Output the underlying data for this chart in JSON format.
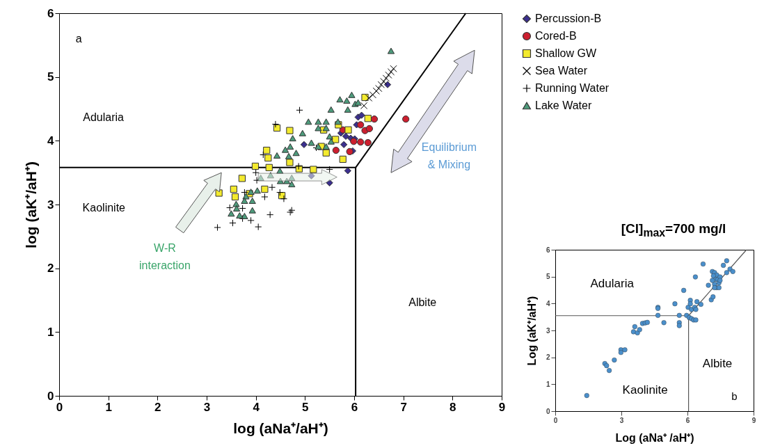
{
  "chart_data": [
    {
      "type": "scatter",
      "xlabel": "log (aNa⁺/aH⁺)",
      "ylabel": "log (aK⁺/aH⁺)",
      "xlim": [
        0,
        9
      ],
      "ylim": [
        0,
        6
      ],
      "xticks": [
        0,
        1,
        2,
        3,
        4,
        5,
        6,
        7,
        8,
        9
      ],
      "yticks": [
        0,
        1,
        2,
        3,
        4,
        5,
        6
      ],
      "grid": false,
      "legend": "top right",
      "annotations": [
        "a",
        "Adularia",
        "Kaolinite",
        "Albite",
        "W-R\ninteraction",
        "Equilibrium\n& Mixing"
      ],
      "series": [
        {
          "name": "Percussion-B",
          "color": "#3b2f8f",
          "marker": "diamond",
          "x": [
            6.68,
            6.08,
            6.15,
            6.05,
            5.73,
            5.83,
            5.93,
            6.01,
            5.79,
            5.97,
            4.98,
            5.87,
            5.13,
            5.5
          ],
          "values": [
            4.88,
            4.37,
            4.4,
            4.25,
            4.12,
            4.07,
            4.04,
            4.03,
            3.94,
            3.84,
            3.94,
            3.53,
            3.45,
            3.34
          ]
        },
        {
          "name": "Cored-B",
          "color": "#cc1f2f",
          "marker": "circle",
          "x": [
            7.05,
            6.41,
            6.13,
            6.22,
            6.31,
            5.99,
            6.13,
            6.28,
            5.63,
            5.91,
            5.77
          ],
          "values": [
            4.34,
            4.34,
            4.25,
            4.16,
            4.19,
            3.99,
            3.98,
            3.97,
            3.85,
            3.83,
            4.17
          ]
        },
        {
          "name": "Shallow GW",
          "color": "#f3ea2e",
          "marker": "square",
          "x": [
            6.22,
            6.28,
            5.88,
            5.68,
            5.62,
            5.43,
            5.33,
            5.77,
            4.69,
            4.43,
            4.22,
            4.25,
            4.27,
            3.99,
            3.72,
            4.88,
            5.17,
            4.69,
            3.55,
            3.58,
            4.18,
            4.53,
            3.25,
            3.87,
            5.38
          ],
          "values": [
            4.68,
            4.35,
            4.17,
            4.25,
            4.02,
            3.81,
            3.91,
            3.71,
            4.16,
            4.2,
            3.85,
            3.73,
            3.58,
            3.6,
            3.41,
            3.56,
            3.55,
            3.66,
            3.24,
            3.12,
            3.24,
            3.14,
            3.18,
            3.17,
            4.17
          ]
        },
        {
          "name": "Sea Water",
          "color": "#000000",
          "marker": "x",
          "x": [
            6.2,
            6.3,
            6.38,
            6.45,
            6.5,
            6.55,
            6.6,
            6.65,
            6.7,
            6.75,
            6.8
          ],
          "values": [
            4.55,
            4.67,
            4.72,
            4.78,
            4.82,
            4.88,
            4.93,
            4.98,
            5.03,
            5.08,
            5.13
          ]
        },
        {
          "name": "Running Water",
          "color": "#000000",
          "marker": "cross",
          "x": [
            4.89,
            4.4,
            4.15,
            4.0,
            4.02,
            4.18,
            4.33,
            4.49,
            4.57,
            4.73,
            4.7,
            4.29,
            4.05,
            3.53,
            3.22,
            3.73,
            3.9,
            3.47,
            3.73,
            3.77,
            5.23,
            5.5,
            4.87
          ],
          "values": [
            4.48,
            4.26,
            3.78,
            3.5,
            3.38,
            3.12,
            3.27,
            3.19,
            3.09,
            2.91,
            2.88,
            2.84,
            2.65,
            2.71,
            2.64,
            2.78,
            2.75,
            2.95,
            2.94,
            3.19,
            3.89,
            3.55,
            3.6
          ]
        },
        {
          "name": "Lake Water",
          "color": "#4e9b7c",
          "marker": "triangle",
          "x": [
            6.75,
            5.95,
            5.71,
            5.85,
            6.02,
            5.87,
            5.53,
            6.08,
            5.07,
            5.27,
            5.43,
            5.67,
            5.27,
            5.43,
            4.95,
            4.75,
            4.7,
            4.6,
            4.67,
            4.82,
            4.43,
            5.13,
            5.5,
            5.53,
            5.43,
            5.27,
            4.1,
            4.3,
            4.49,
            4.5,
            4.63,
            4.73,
            4.73,
            4.03,
            3.9,
            3.8,
            3.77,
            3.93,
            3.6,
            3.5,
            3.61,
            3.77,
            3.67,
            3.93
          ],
          "values": [
            5.41,
            4.72,
            4.65,
            4.63,
            4.58,
            4.49,
            4.49,
            4.6,
            4.3,
            4.3,
            4.3,
            4.3,
            4.2,
            4.2,
            4.12,
            4.04,
            3.91,
            3.86,
            3.76,
            3.81,
            3.77,
            3.97,
            4.07,
            3.99,
            3.91,
            3.91,
            3.42,
            3.46,
            3.53,
            3.37,
            3.37,
            3.42,
            3.32,
            3.22,
            3.2,
            3.13,
            3.06,
            3.06,
            3.01,
            2.86,
            2.94,
            2.82,
            2.83,
            2.91
          ]
        },
        {
          "type": "line",
          "color": "#000000",
          "x": [
            0,
            6.03
          ],
          "values": [
            3.58,
            3.58
          ]
        },
        {
          "type": "line",
          "color": "#000000",
          "x": [
            6.03,
            6.03
          ],
          "values": [
            0,
            3.58
          ]
        },
        {
          "type": "line",
          "color": "#000000",
          "x": [
            6.03,
            8.27
          ],
          "values": [
            3.58,
            6
          ]
        }
      ]
    },
    {
      "type": "scatter",
      "title": "[Cl]$_{max}$=700 mg/l",
      "xlabel": "Log (aNa⁺ /aH⁺)",
      "ylabel": "Log (aK⁺/aH⁺)",
      "xlim": [
        0,
        9
      ],
      "ylim": [
        0,
        6
      ],
      "xticks": [
        0,
        3,
        6,
        9
      ],
      "yticks": [
        0,
        1,
        2,
        3,
        4,
        5,
        6
      ],
      "grid": false,
      "annotations": [
        "Adularia",
        "Albite",
        "Kaolinite",
        "b"
      ],
      "series": [
        {
          "color": "#4a8fcb",
          "marker": "circle",
          "x": [
            1.43,
            2.25,
            2.33,
            2.45,
            2.68,
            2.98,
            2.98,
            3.16,
            3.55,
            3.61,
            3.73,
            3.83,
            3.96,
            4.08,
            4.18,
            4.66,
            4.66,
            4.66,
            4.93,
            5.43,
            5.83,
            5.63,
            5.63,
            5.63,
            5.96,
            6.03,
            6.13,
            6.13,
            6.18,
            6.08,
            6.18,
            6.28,
            6.38,
            6.33,
            6.38,
            6.43,
            6.36,
            6.61,
            6.71,
            6.95,
            7.08,
            7.16,
            7.13,
            7.23,
            7.33,
            7.18,
            7.28,
            7.38,
            7.43,
            7.23,
            7.33,
            7.43,
            7.48,
            7.13,
            7.23,
            7.48,
            7.63,
            7.78,
            7.78,
            7.93,
            8.06
          ],
          "values": [
            0.58,
            1.77,
            1.69,
            1.51,
            1.9,
            2.28,
            2.18,
            2.28,
            2.95,
            3.14,
            2.91,
            3.03,
            3.26,
            3.28,
            3.3,
            3.86,
            3.82,
            3.56,
            3.29,
            3.99,
            4.49,
            3.56,
            3.29,
            3.18,
            3.56,
            3.86,
            4.12,
            3.99,
            3.78,
            3.48,
            3.44,
            3.39,
            3.39,
            3.86,
            3.78,
            4.07,
            4.99,
            3.97,
            5.47,
            4.68,
            4.14,
            4.25,
            5.19,
            5.15,
            5.06,
            5.03,
            4.9,
            4.9,
            4.77,
            4.72,
            4.59,
            4.59,
            4.99,
            4.86,
            4.59,
            4.86,
            5.42,
            5.59,
            5.15,
            5.28,
            5.19
          ]
        },
        {
          "type": "line",
          "color": "#555555",
          "x": [
            0,
            6.05
          ],
          "values": [
            3.55,
            3.55
          ]
        },
        {
          "type": "line",
          "color": "#555555",
          "x": [
            6.05,
            6.05
          ],
          "values": [
            0,
            3.55
          ]
        },
        {
          "type": "line",
          "color": "#555555",
          "x": [
            6.05,
            8.68
          ],
          "values": [
            3.55,
            6
          ]
        }
      ]
    }
  ]
}
